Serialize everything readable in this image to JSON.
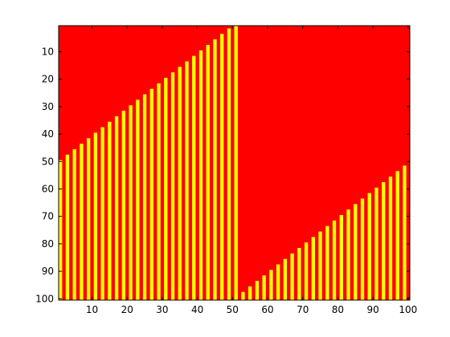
{
  "chart_data": {
    "type": "heatmap",
    "title": "",
    "xlabel": "",
    "ylabel": "",
    "xlim": [
      0.5,
      100.5
    ],
    "ylim": [
      0.5,
      100.5
    ],
    "y_reversed": true,
    "ncols": 100,
    "nrows": 100,
    "x_ticks": [
      10,
      20,
      30,
      40,
      50,
      60,
      70,
      80,
      90,
      100
    ],
    "y_ticks": [
      10,
      20,
      30,
      40,
      50,
      60,
      70,
      80,
      90,
      100
    ],
    "x_tick_labels": [
      "10",
      "20",
      "30",
      "40",
      "50",
      "60",
      "70",
      "80",
      "90",
      "100"
    ],
    "y_tick_labels": [
      "10",
      "20",
      "30",
      "40",
      "50",
      "60",
      "70",
      "80",
      "90",
      "100"
    ],
    "background_color": "#ff0000",
    "stripe_color": "#ffff00",
    "stripe_columns": "odd columns only",
    "stripe_segments": [
      {
        "x_range": [
          1,
          51
        ],
        "row_start_at_x1": 50,
        "row_start_step_per_column": -1,
        "row_end": 100
      },
      {
        "x_range": [
          52,
          100
        ],
        "row_start_at_x52": 99,
        "row_start_step_per_column": -1,
        "row_end": 100
      }
    ]
  }
}
